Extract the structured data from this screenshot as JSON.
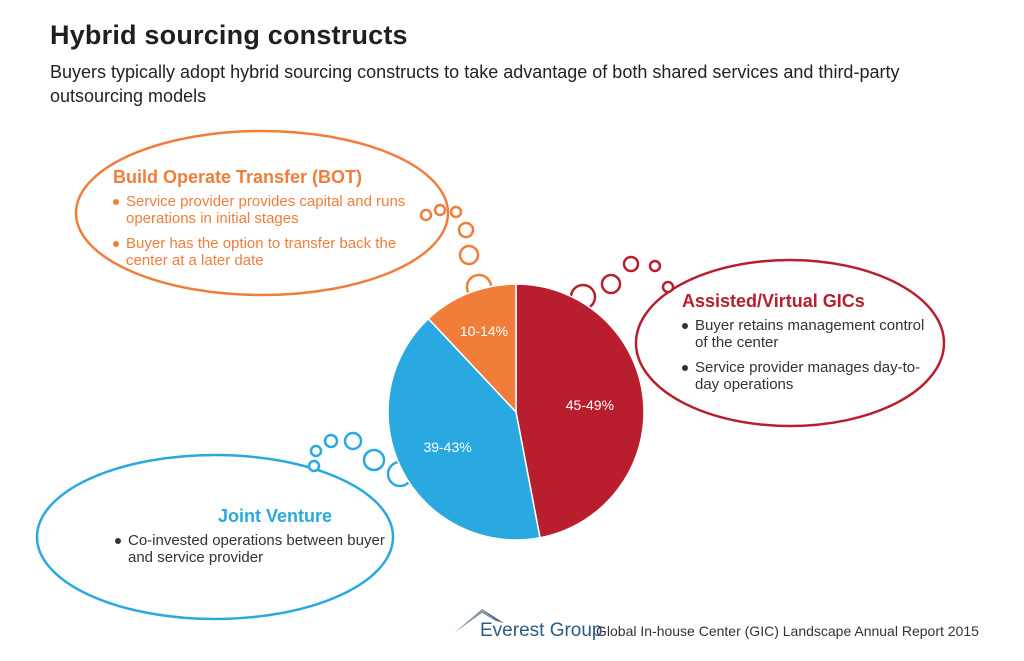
{
  "title": "Hybrid sourcing constructs",
  "subtitle": "Buyers typically adopt hybrid sourcing constructs to take advantage of both shared services and third-party outsourcing models",
  "colors": {
    "bot": "#f07d3a",
    "assisted": "#b81e2d",
    "joint": "#29a9e0"
  },
  "chart_data": {
    "type": "pie",
    "title": "Hybrid sourcing constructs",
    "slices": [
      {
        "name": "Assisted/Virtual GICs",
        "label": "45-49%",
        "value": 47
      },
      {
        "name": "Joint Venture",
        "label": "39-43%",
        "value": 41
      },
      {
        "name": "Build Operate Transfer (BOT)",
        "label": "10-14%",
        "value": 12
      }
    ]
  },
  "bubbles": {
    "bot": {
      "heading": "Build Operate Transfer (BOT)",
      "bullets": [
        "Service provider provides capital and runs operations in initial stages",
        "Buyer has the option to transfer back the center at a later date"
      ]
    },
    "assisted": {
      "heading": "Assisted/Virtual GICs",
      "bullets": [
        "Buyer retains management control of the center",
        "Service provider manages day-to-day operations"
      ]
    },
    "joint": {
      "heading": "Joint Venture",
      "bullets": [
        "Co-invested operations between buyer and service provider"
      ]
    }
  },
  "footer": {
    "brand": "Everest Group",
    "report": "Global In-house Center (GIC) Landscape Annual Report 2015",
    "logo_icon": "mountain-peak-icon"
  }
}
